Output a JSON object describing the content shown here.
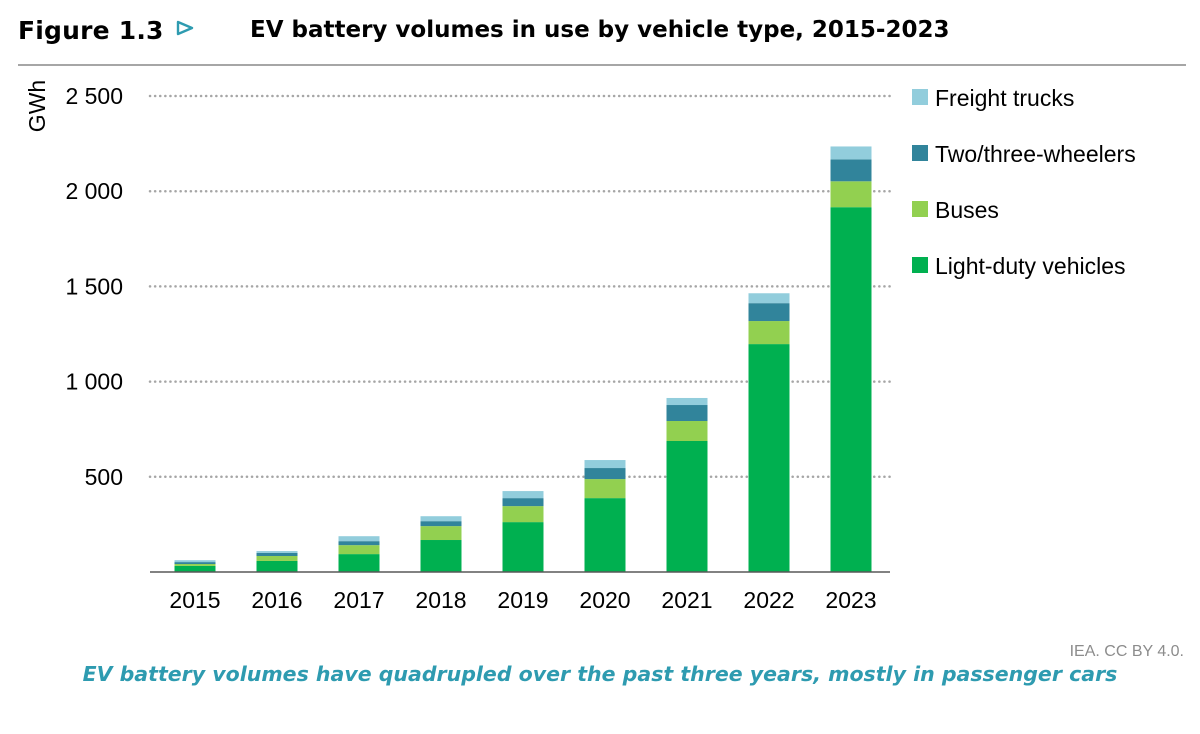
{
  "figure": {
    "label": "Figure 1.3",
    "arrow_icon": "triangle-right-outline",
    "title": "EV battery volumes in use by vehicle type, 2015-2023",
    "source": "IEA. CC BY 4.0.",
    "caption": "EV battery volumes have quadrupled over the past three years, mostly in passenger cars",
    "accent_color": "#2e9bb0"
  },
  "chart_data": {
    "type": "bar",
    "stacked": true,
    "title": "EV battery volumes in use by vehicle type, 2015-2023",
    "xlabel": "",
    "ylabel": "GWh",
    "categories": [
      "2015",
      "2016",
      "2017",
      "2018",
      "2019",
      "2020",
      "2021",
      "2022",
      "2023"
    ],
    "ylim": [
      0,
      2500
    ],
    "yticks": [
      500,
      1000,
      1500,
      2000,
      2500
    ],
    "ytick_labels": [
      "500",
      "1 000",
      "1 500",
      "2 000",
      "2 500"
    ],
    "grid": true,
    "legend_position": "right",
    "series": [
      {
        "name": "Light-duty vehicles",
        "color": "#00b050",
        "values": [
          32,
          58,
          94,
          168,
          262,
          388,
          688,
          1197,
          1916
        ]
      },
      {
        "name": "Buses",
        "color": "#92d050",
        "values": [
          10,
          26,
          47,
          73,
          84,
          100,
          105,
          121,
          136
        ]
      },
      {
        "name": "Two/three-wheelers",
        "color": "#31849b",
        "values": [
          10,
          16,
          21,
          26,
          42,
          58,
          84,
          94,
          115
        ]
      },
      {
        "name": "Freight trucks",
        "color": "#92cddc",
        "values": [
          10,
          10,
          26,
          26,
          37,
          42,
          37,
          52,
          68
        ]
      }
    ],
    "legend_order": [
      "Freight trucks",
      "Two/three-wheelers",
      "Buses",
      "Light-duty vehicles"
    ]
  }
}
